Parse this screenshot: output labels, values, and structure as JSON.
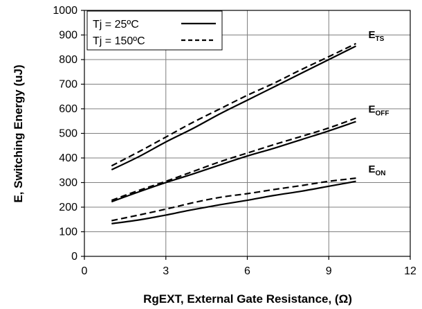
{
  "chart_data": {
    "type": "line",
    "xlabel": "RgEXT, External Gate Resistance, (Ω)",
    "ylabel": "E, Switching Energy (uJ)",
    "xlim": [
      0,
      12
    ],
    "ylim": [
      0,
      1000
    ],
    "xticks": [
      "0",
      "3",
      "6",
      "9",
      "12"
    ],
    "yticks": [
      "0",
      "100",
      "200",
      "300",
      "400",
      "500",
      "600",
      "700",
      "800",
      "900",
      "1000"
    ],
    "grid": true,
    "legend_position": "top-left",
    "legend": [
      {
        "label": "Tj = 25ºC",
        "style": "solid"
      },
      {
        "label": "Tj = 150ºC",
        "style": "dashed"
      }
    ],
    "curves": [
      {
        "label_main": "E",
        "label_sub": "TS",
        "series": [
          {
            "temperature": "Tj = 25ºC",
            "style": "solid",
            "x": [
              1,
              2,
              3,
              4,
              5,
              6,
              7,
              8,
              9,
              10
            ],
            "y": [
              352,
              405,
              465,
              520,
              580,
              635,
              690,
              745,
              800,
              855
            ]
          },
          {
            "temperature": "Tj = 150ºC",
            "style": "dashed",
            "x": [
              1,
              2,
              3,
              4,
              5,
              6,
              7,
              8,
              9,
              10
            ],
            "y": [
              368,
              425,
              485,
              545,
              600,
              655,
              705,
              760,
              812,
              865
            ]
          }
        ]
      },
      {
        "label_main": "E",
        "label_sub": "OFF",
        "series": [
          {
            "temperature": "Tj = 25ºC",
            "style": "solid",
            "x": [
              1,
              2,
              3,
              4,
              5,
              6,
              7,
              8,
              9,
              10
            ],
            "y": [
              222,
              262,
              300,
              335,
              372,
              408,
              440,
              475,
              510,
              548
            ]
          },
          {
            "temperature": "Tj = 150ºC",
            "style": "dashed",
            "x": [
              1,
              2,
              3,
              4,
              5,
              6,
              7,
              8,
              9,
              10
            ],
            "y": [
              228,
              268,
              305,
              345,
              385,
              420,
              455,
              488,
              522,
              562
            ]
          }
        ]
      },
      {
        "label_main": "E",
        "label_sub": "ON",
        "series": [
          {
            "temperature": "Tj = 25ºC",
            "style": "solid",
            "x": [
              1,
              2,
              3,
              4,
              5,
              6,
              7,
              8,
              9,
              10
            ],
            "y": [
              133,
              148,
              168,
              190,
              210,
              228,
              248,
              265,
              285,
              305
            ]
          },
          {
            "temperature": "Tj = 150ºC",
            "style": "dashed",
            "x": [
              1,
              2,
              3,
              4,
              5,
              6,
              7,
              8,
              9,
              10
            ],
            "y": [
              145,
              168,
              192,
              218,
              240,
              255,
              272,
              288,
              305,
              318
            ]
          }
        ]
      }
    ]
  }
}
